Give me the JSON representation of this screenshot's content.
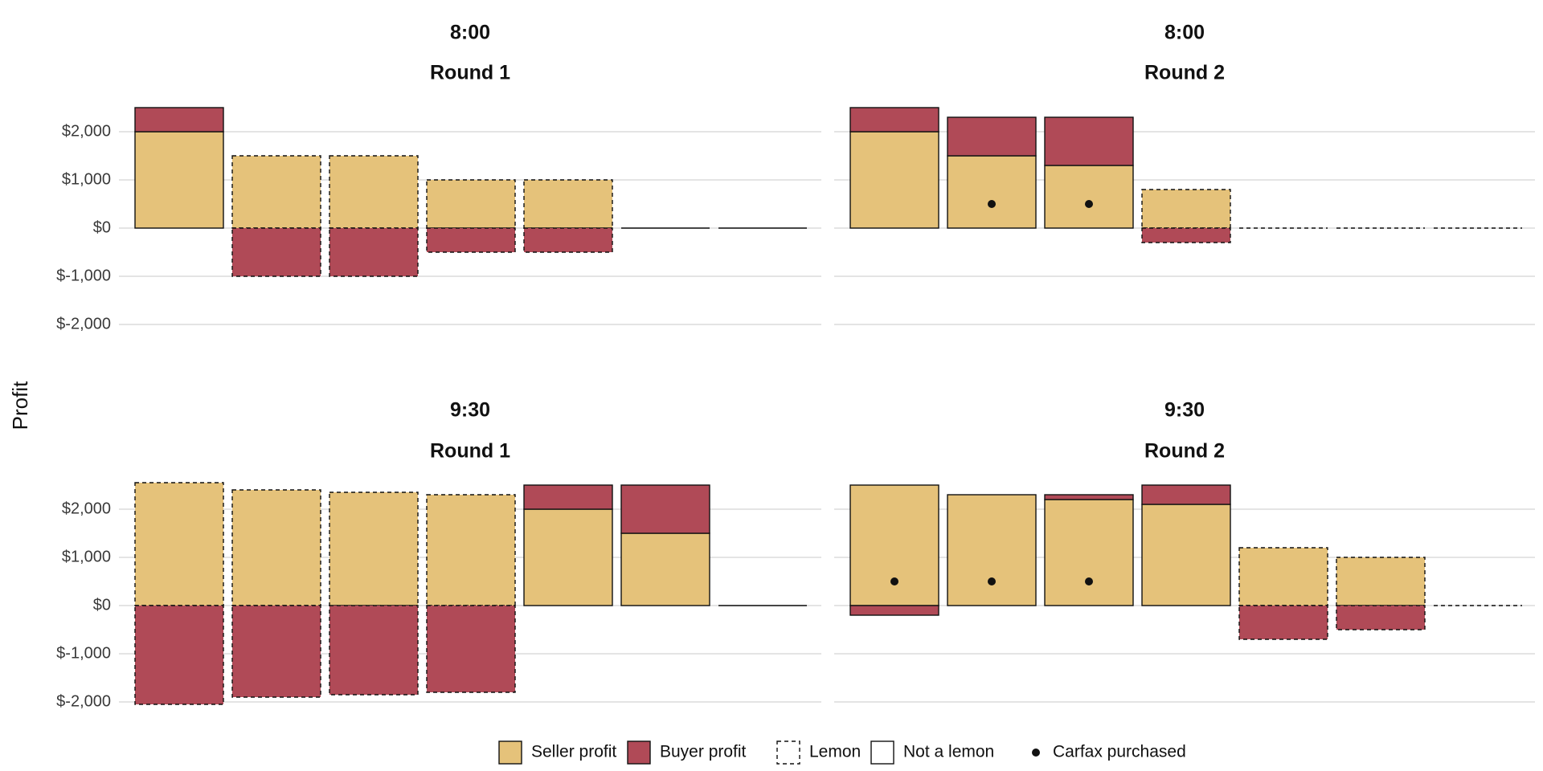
{
  "chart_data": {
    "type": "bar",
    "ylabel": "Profit",
    "y_ticks": [
      2000,
      1000,
      0,
      -1000,
      -2000
    ],
    "y_tick_labels": [
      "$2,000",
      "$1,000",
      "$0",
      "$-1,000",
      "$-2,000"
    ],
    "ylim": [
      -2200,
      2600
    ],
    "max_cars_per_panel": 7,
    "grid": "horizontal",
    "colors": {
      "seller_profit": "#E5C27A",
      "buyer_profit": "#B04A57",
      "outline": "#111111",
      "gridline": "#E4E4E4"
    },
    "legend": {
      "placement": "bottom",
      "items": [
        {
          "key": "seller",
          "label": "Seller profit"
        },
        {
          "key": "buyer",
          "label": "Buyer profit"
        },
        {
          "key": "lemon",
          "label": "Lemon"
        },
        {
          "key": "notlemon",
          "label": "Not a lemon"
        },
        {
          "key": "carfax",
          "label": "Carfax purchased"
        }
      ]
    },
    "panels": [
      {
        "session": "8:00",
        "round": "Round 1",
        "cars": [
          {
            "seller": 2000,
            "buyer": 500,
            "lemon": false,
            "carfax": false
          },
          {
            "seller": 1500,
            "buyer": -1000,
            "lemon": true,
            "carfax": false
          },
          {
            "seller": 1500,
            "buyer": -1000,
            "lemon": true,
            "carfax": false
          },
          {
            "seller": 1000,
            "buyer": -500,
            "lemon": true,
            "carfax": false
          },
          {
            "seller": 1000,
            "buyer": -500,
            "lemon": true,
            "carfax": false
          },
          {
            "seller": 0,
            "buyer": 0,
            "lemon": false,
            "carfax": false
          },
          {
            "seller": 0,
            "buyer": 0,
            "lemon": false,
            "carfax": false
          }
        ]
      },
      {
        "session": "8:00",
        "round": "Round 2",
        "cars": [
          {
            "seller": 2000,
            "buyer": 500,
            "lemon": false,
            "carfax": false
          },
          {
            "seller": 1500,
            "buyer": 800,
            "lemon": false,
            "carfax": true
          },
          {
            "seller": 1300,
            "buyer": 1000,
            "lemon": false,
            "carfax": true
          },
          {
            "seller": 800,
            "buyer": -300,
            "lemon": true,
            "carfax": false
          },
          {
            "seller": 0,
            "buyer": 0,
            "lemon": true,
            "carfax": false
          },
          {
            "seller": 0,
            "buyer": 0,
            "lemon": true,
            "carfax": false
          },
          {
            "seller": 0,
            "buyer": 0,
            "lemon": true,
            "carfax": false
          }
        ]
      },
      {
        "session": "9:30",
        "round": "Round 1",
        "cars": [
          {
            "seller": 2550,
            "buyer": -2050,
            "lemon": true,
            "carfax": false
          },
          {
            "seller": 2400,
            "buyer": -1900,
            "lemon": true,
            "carfax": false
          },
          {
            "seller": 2350,
            "buyer": -1850,
            "lemon": true,
            "carfax": false
          },
          {
            "seller": 2300,
            "buyer": -1800,
            "lemon": true,
            "carfax": false
          },
          {
            "seller": 2000,
            "buyer": 500,
            "lemon": false,
            "carfax": false
          },
          {
            "seller": 1500,
            "buyer": 1000,
            "lemon": false,
            "carfax": false
          },
          {
            "seller": 0,
            "buyer": 0,
            "lemon": false,
            "carfax": false
          }
        ]
      },
      {
        "session": "9:30",
        "round": "Round 2",
        "cars": [
          {
            "seller": 2500,
            "buyer": -200,
            "lemon": false,
            "carfax": true
          },
          {
            "seller": 2300,
            "buyer": 0,
            "lemon": false,
            "carfax": true
          },
          {
            "seller": 2200,
            "buyer": 100,
            "lemon": false,
            "carfax": true
          },
          {
            "seller": 2100,
            "buyer": 400,
            "lemon": false,
            "carfax": false
          },
          {
            "seller": 1200,
            "buyer": -700,
            "lemon": true,
            "carfax": false
          },
          {
            "seller": 1000,
            "buyer": -500,
            "lemon": true,
            "carfax": false
          },
          {
            "seller": 0,
            "buyer": 0,
            "lemon": true,
            "carfax": false
          }
        ]
      }
    ]
  }
}
